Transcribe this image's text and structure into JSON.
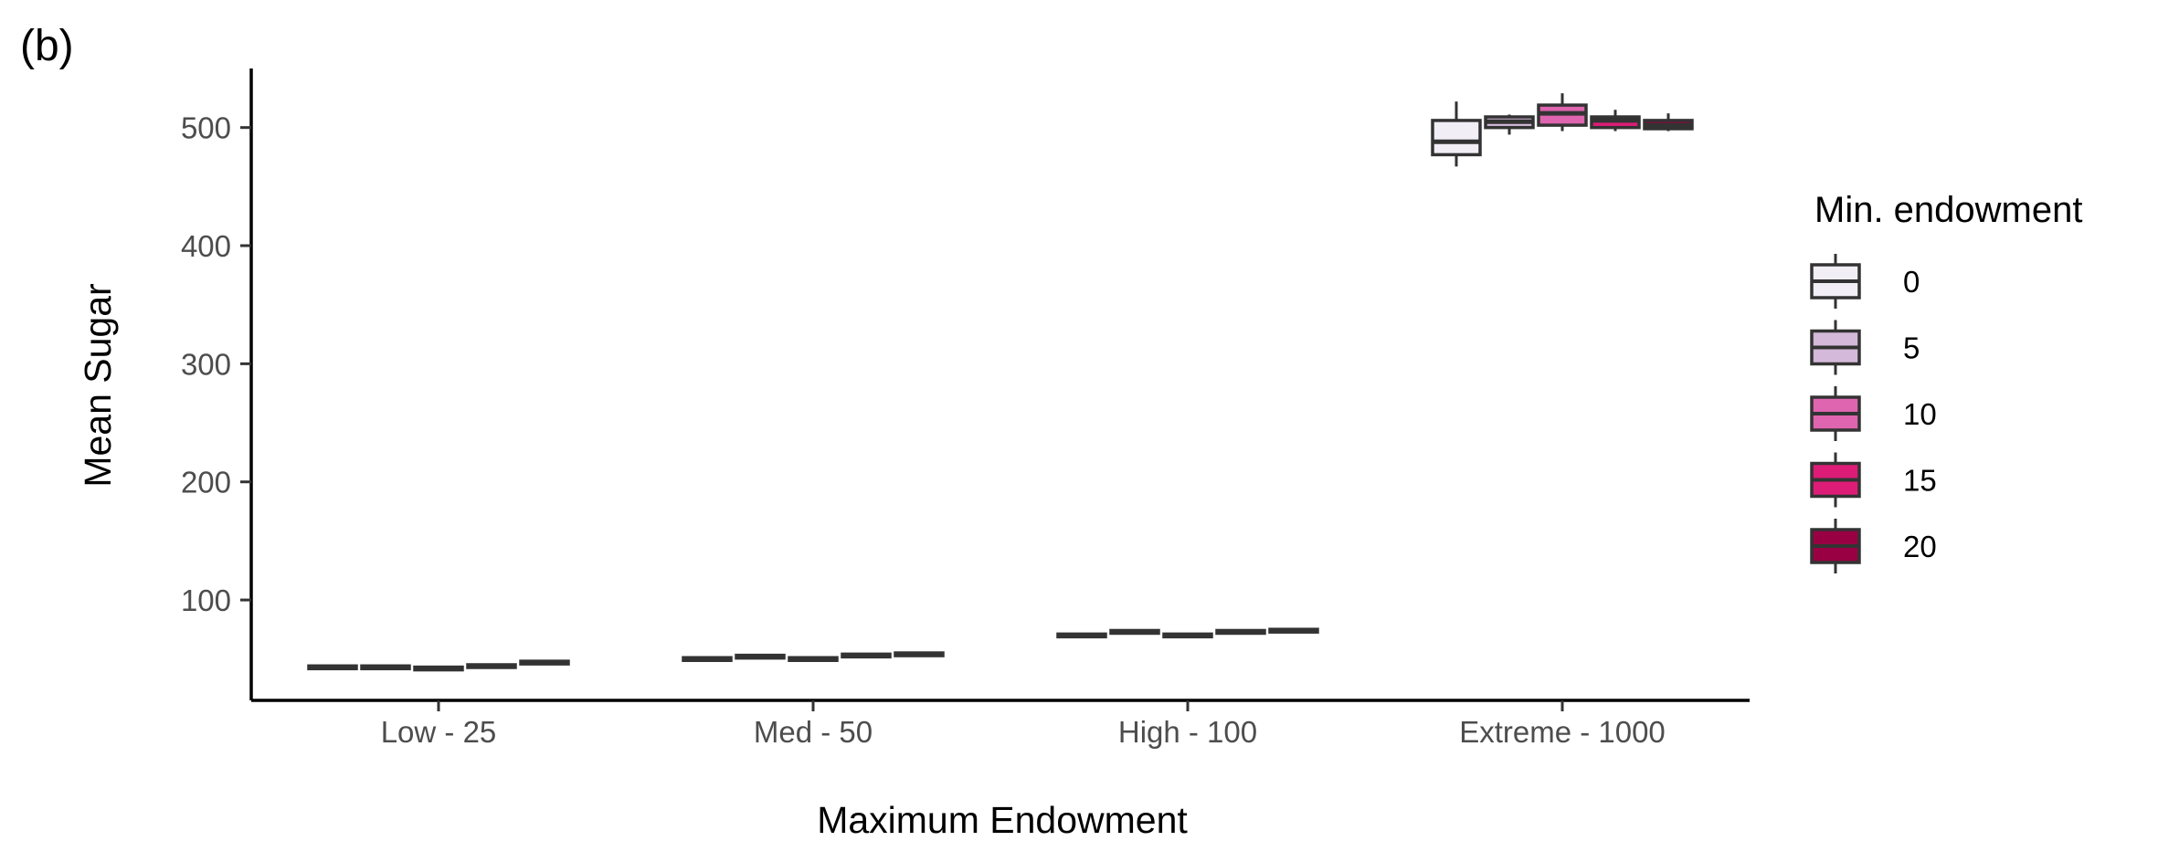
{
  "panel_tag": "(b)",
  "chart_data": {
    "type": "boxplot",
    "title": "",
    "xlabel": "Maximum Endowment",
    "ylabel": "Mean Sugar",
    "categories": [
      "Low - 25",
      "Med - 50",
      "High - 100",
      "Extreme - 1000"
    ],
    "ylim": [
      15,
      550
    ],
    "yticks": [
      100,
      200,
      300,
      400,
      500
    ],
    "grid": false,
    "legend": {
      "title": "Min. endowment",
      "placement": "right"
    },
    "series": [
      {
        "name": "0",
        "color": "#f1eef6",
        "boxes": [
          {
            "min": 41,
            "q1": 42,
            "median": 43,
            "q3": 44,
            "max": 45
          },
          {
            "min": 48,
            "q1": 49,
            "median": 50,
            "q3": 51,
            "max": 52
          },
          {
            "min": 68,
            "q1": 69,
            "median": 70,
            "q3": 71,
            "max": 72
          },
          {
            "min": 467,
            "q1": 477,
            "median": 488,
            "q3": 506,
            "max": 522
          }
        ]
      },
      {
        "name": "5",
        "color": "#d4b9da",
        "boxes": [
          {
            "min": 41,
            "q1": 42,
            "median": 43,
            "q3": 44,
            "max": 45
          },
          {
            "min": 50,
            "q1": 51,
            "median": 52,
            "q3": 53,
            "max": 54
          },
          {
            "min": 71,
            "q1": 72,
            "median": 73,
            "q3": 74,
            "max": 75
          },
          {
            "min": 494,
            "q1": 500,
            "median": 505,
            "q3": 509,
            "max": 511
          }
        ]
      },
      {
        "name": "10",
        "color": "#df65b0",
        "boxes": [
          {
            "min": 40,
            "q1": 41,
            "median": 42,
            "q3": 43,
            "max": 44
          },
          {
            "min": 48,
            "q1": 49,
            "median": 50,
            "q3": 51,
            "max": 52
          },
          {
            "min": 68,
            "q1": 69,
            "median": 70,
            "q3": 71,
            "max": 72
          },
          {
            "min": 497,
            "q1": 502,
            "median": 512,
            "q3": 519,
            "max": 529
          }
        ]
      },
      {
        "name": "15",
        "color": "#dd1c77",
        "boxes": [
          {
            "min": 42,
            "q1": 43,
            "median": 44,
            "q3": 45,
            "max": 46
          },
          {
            "min": 51,
            "q1": 52,
            "median": 53,
            "q3": 54,
            "max": 55
          },
          {
            "min": 71,
            "q1": 72,
            "median": 73,
            "q3": 74,
            "max": 75
          },
          {
            "min": 497,
            "q1": 500,
            "median": 506,
            "q3": 509,
            "max": 515
          }
        ]
      },
      {
        "name": "20",
        "color": "#980043",
        "boxes": [
          {
            "min": 45,
            "q1": 46,
            "median": 47,
            "q3": 48,
            "max": 49
          },
          {
            "min": 52,
            "q1": 53,
            "median": 54,
            "q3": 55,
            "max": 56
          },
          {
            "min": 72,
            "q1": 73,
            "median": 74,
            "q3": 75,
            "max": 76
          },
          {
            "min": 497,
            "q1": 499,
            "median": 502,
            "q3": 506,
            "max": 512
          }
        ]
      }
    ]
  }
}
